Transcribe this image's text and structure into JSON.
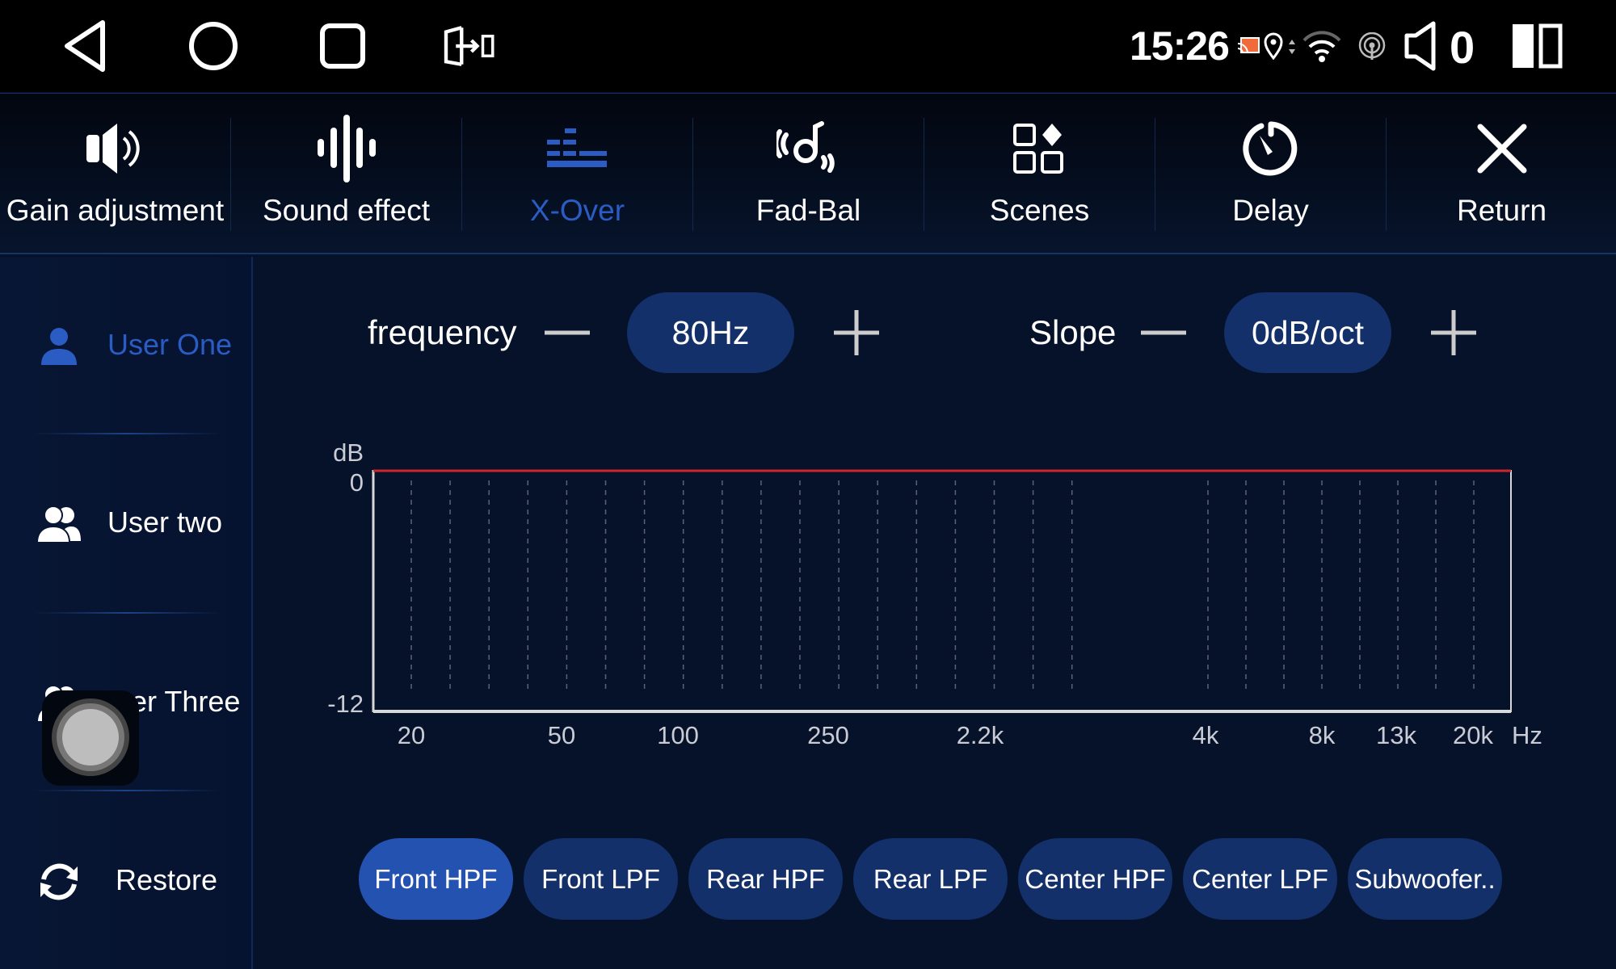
{
  "status_bar": {
    "time": "15:26",
    "volume": "0",
    "nav_icons": [
      "back-icon",
      "home-icon",
      "recents-icon",
      "screen-mirror-icon"
    ],
    "status_icons": [
      "cast-icon",
      "location-icon",
      "data-arrows-icon",
      "wifi-icon",
      "hotspot-icon",
      "volume-icon",
      "split-screen-icon"
    ],
    "cast_color": "#f26a3a"
  },
  "tabs": [
    {
      "label": "Gain adjustment",
      "icon": "speaker-icon"
    },
    {
      "label": "Sound effect",
      "icon": "waveform-icon"
    },
    {
      "label": "X-Over",
      "icon": "equalizer-bars-icon",
      "active": true
    },
    {
      "label": "Fad-Bal",
      "icon": "fader-balance-icon"
    },
    {
      "label": "Scenes",
      "icon": "scenes-grid-icon"
    },
    {
      "label": "Delay",
      "icon": "timer-icon"
    },
    {
      "label": "Return",
      "icon": "close-icon"
    }
  ],
  "sidebar": {
    "items": [
      {
        "label": "User One",
        "icon": "user-icon",
        "active": true
      },
      {
        "label": "User two",
        "icon": "users-icon"
      },
      {
        "label": "User Three",
        "icon": "users-icon"
      },
      {
        "label": "Restore",
        "icon": "refresh-icon"
      }
    ]
  },
  "controls": {
    "frequency_label": "frequency",
    "frequency_value": "80Hz",
    "slope_label": "Slope",
    "slope_value": "0dB/oct"
  },
  "chart_data": {
    "type": "line",
    "ylabel": "dB",
    "xunit": "Hz",
    "ylim": [
      -12,
      0
    ],
    "y_ticks": [
      "0",
      "-12"
    ],
    "x_ticks": [
      "20",
      "50",
      "100",
      "250",
      "2.2k",
      "4k",
      "8k",
      "13k",
      "20k"
    ],
    "series": [
      {
        "values_db": [
          0,
          0,
          0,
          0,
          0,
          0,
          0,
          0,
          0
        ],
        "color": "#d0262b"
      }
    ],
    "grid": "vertical dashed"
  },
  "channels": [
    {
      "label": "Front HPF",
      "active": true
    },
    {
      "label": "Front LPF"
    },
    {
      "label": "Rear HPF"
    },
    {
      "label": "Rear LPF"
    },
    {
      "label": "Center HPF"
    },
    {
      "label": "Center LPF"
    },
    {
      "label": "Subwoofer.."
    }
  ],
  "accent_color": "#2a5cc4"
}
